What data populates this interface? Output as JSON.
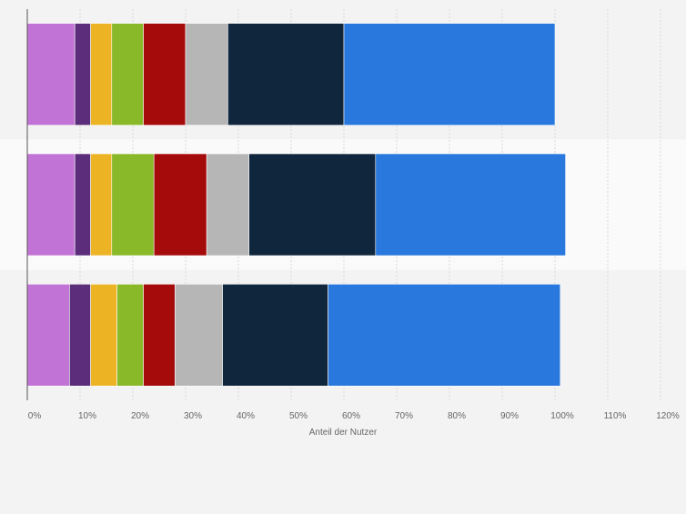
{
  "chart_data": {
    "type": "bar",
    "orientation": "horizontal",
    "stacked": true,
    "categories": [
      "",
      "",
      ""
    ],
    "series": [
      {
        "color": "#c274d6",
        "values": [
          9,
          9,
          8
        ]
      },
      {
        "color": "#5b2d7a",
        "values": [
          3,
          3,
          4
        ]
      },
      {
        "color": "#ecb425",
        "values": [
          4,
          4,
          5
        ]
      },
      {
        "color": "#89b828",
        "values": [
          6,
          8,
          5
        ]
      },
      {
        "color": "#a50b0b",
        "values": [
          8,
          10,
          6
        ]
      },
      {
        "color": "#b6b6b6",
        "values": [
          8,
          8,
          9
        ]
      },
      {
        "color": "#10263d",
        "values": [
          22,
          24,
          20
        ]
      },
      {
        "color": "#2878dd",
        "values": [
          40,
          36,
          44
        ]
      }
    ],
    "xlabel": "Anteil der Nutzer",
    "ylabel": "",
    "xlim": [
      0,
      120
    ],
    "xticks": [
      "0%",
      "10%",
      "20%",
      "30%",
      "40%",
      "50%",
      "60%",
      "70%",
      "80%",
      "90%",
      "100%",
      "110%",
      "120%"
    ],
    "grid": true,
    "legend": "none"
  }
}
